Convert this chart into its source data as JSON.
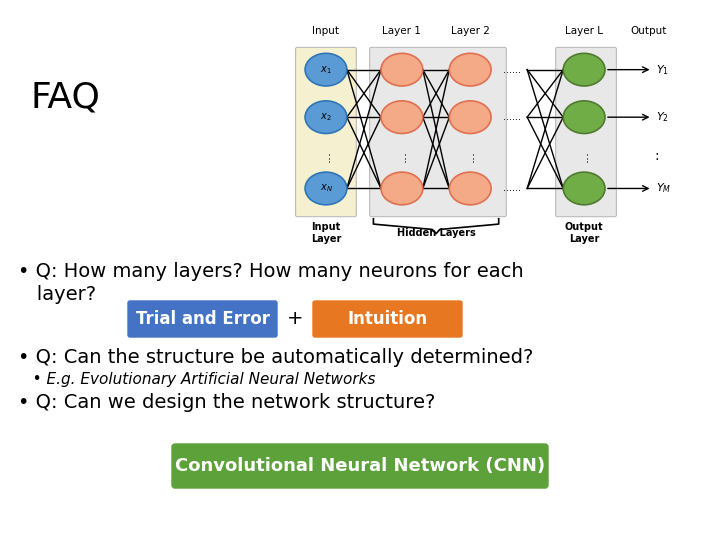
{
  "title": "FAQ",
  "title_fontsize": 26,
  "background_color": "#ffffff",
  "bullet1_line1": "• Q: How many layers? How many neurons for each",
  "bullet1_line2": "   layer?",
  "bullet2": "• Q: Can the structure be automatically determined?",
  "bullet2_sub": "   • E.g. Evolutionary Artificial Neural Networks",
  "bullet3": "• Q: Can we design the network structure?",
  "trial_error_text": "Trial and Error",
  "trial_error_color": "#4472C4",
  "plus_text": "+",
  "intuition_text": "Intuition",
  "intuition_color": "#E87722",
  "cnn_text": "Convolutional Neural Network (CNN)",
  "cnn_color": "#5CA13A",
  "button_text_color": "#ffffff",
  "input_neuron_color": "#5B9BD5",
  "input_neuron_edge": "#2E75B6",
  "hidden_neuron_color": "#F4A987",
  "hidden_neuron_edge": "#E07050",
  "output_neuron_color": "#70AD47",
  "output_neuron_edge": "#507A30",
  "input_bg_color": "#F5F0D0",
  "hidden_bg_color": "#E8E8E8",
  "output_bg_color": "#E8E8E8"
}
